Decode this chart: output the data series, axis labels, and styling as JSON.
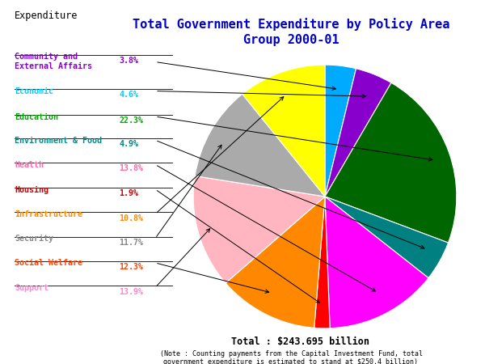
{
  "title": "Total Government Expenditure by Policy Area\nGroup 2000-01",
  "header": "Expenditure",
  "total_text": "Total : $243.695 billion",
  "note_text": "(Note : Counting payments from the Capital Investment Fund, total\ngovernment expenditure is estimated to stand at $250.4 billion)",
  "categories": [
    "Community and\nExternal Affairs",
    "Economic",
    "Education",
    "Environment & Food",
    "Health",
    "Housing",
    "Infrastructure",
    "Security",
    "Social Welfare",
    "Support"
  ],
  "percentages": [
    3.8,
    4.6,
    22.3,
    4.9,
    13.8,
    1.9,
    10.8,
    11.7,
    12.3,
    13.9
  ],
  "pct_labels": [
    "3.8%",
    "4.6%",
    "22.3%",
    "4.9%",
    "13.8%",
    "1.9%",
    "10.8%",
    "11.7%",
    "12.3%",
    "13.9%"
  ],
  "colors": [
    "#00AAFF",
    "#8800CC",
    "#006600",
    "#008080",
    "#FF00FF",
    "#FF0000",
    "#FFFF00",
    "#AAAAAA",
    "#FF8800",
    "#FFB6C1"
  ],
  "label_colors": [
    "#8800CC",
    "#00CCFF",
    "#00AA00",
    "#008888",
    "#FF66AA",
    "#CC0000",
    "#FF8800",
    "#888888",
    "#FF4400",
    "#FF88CC"
  ],
  "pct_colors": [
    "#8800CC",
    "#00CCFF",
    "#00AA00",
    "#008888",
    "#FF66AA",
    "#CC0000",
    "#FF8800",
    "#888888",
    "#FF4400",
    "#FF88CC"
  ],
  "background": "#FFFFFF",
  "title_color": "#0000CC",
  "header_color": "#000000",
  "pie_order": [
    0,
    1,
    2,
    3,
    4,
    5,
    8,
    9,
    7,
    6
  ]
}
